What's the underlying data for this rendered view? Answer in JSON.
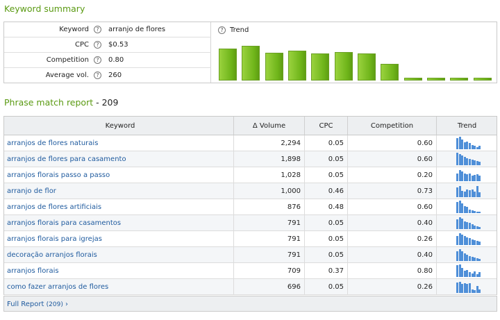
{
  "keyword_summary": {
    "title": "Keyword summary",
    "rows": [
      {
        "label": "Keyword",
        "value": "arranjo de flores"
      },
      {
        "label": "CPC",
        "value": "$0.53"
      },
      {
        "label": "Competition",
        "value": "0.80"
      },
      {
        "label": "Average vol.",
        "value": "260"
      }
    ],
    "trend_label": "Trend",
    "trend_values": [
      0.82,
      0.89,
      0.72,
      0.76,
      0.7,
      0.74,
      0.7,
      0.42,
      0.07,
      0.07,
      0.07,
      0.07
    ],
    "trend_color": "#7bbf22"
  },
  "phrase_match": {
    "title": "Phrase match report",
    "count_sep": " - ",
    "count": "209",
    "columns": [
      "Keyword",
      "Δ Volume",
      "CPC",
      "Competition",
      "Trend"
    ],
    "rows": [
      {
        "keyword": "arranjos de flores naturais",
        "volume": "2,294",
        "cpc": "0.05",
        "competition": "0.60",
        "trend": [
          0.9,
          1.0,
          0.75,
          0.55,
          0.6,
          0.5,
          0.35,
          0.3,
          0.15,
          0.3
        ]
      },
      {
        "keyword": "arranjos de flores para casamento",
        "volume": "1,898",
        "cpc": "0.05",
        "competition": "0.60",
        "trend": [
          1.0,
          0.9,
          0.8,
          0.65,
          0.55,
          0.5,
          0.45,
          0.4,
          0.35,
          0.3
        ]
      },
      {
        "keyword": "arranjos florais passo a passo",
        "volume": "1,028",
        "cpc": "0.05",
        "competition": "0.20",
        "trend": [
          0.6,
          0.9,
          0.75,
          0.6,
          0.55,
          0.6,
          0.45,
          0.5,
          0.55,
          0.45
        ]
      },
      {
        "keyword": "arranjo de flor",
        "volume": "1,000",
        "cpc": "0.46",
        "competition": "0.73",
        "trend": [
          0.75,
          0.9,
          0.5,
          0.45,
          0.6,
          0.55,
          0.6,
          0.45,
          0.9,
          0.4
        ]
      },
      {
        "keyword": "arranjos de flores artificiais",
        "volume": "876",
        "cpc": "0.48",
        "competition": "0.60",
        "trend": [
          0.9,
          1.0,
          0.8,
          0.55,
          0.5,
          0.3,
          0.2,
          0.15,
          0.1,
          0.1
        ]
      },
      {
        "keyword": "arranjos florais para casamentos",
        "volume": "791",
        "cpc": "0.05",
        "competition": "0.40",
        "trend": [
          0.8,
          0.95,
          0.85,
          0.6,
          0.55,
          0.5,
          0.4,
          0.3,
          0.2,
          0.15
        ]
      },
      {
        "keyword": "arranjos florais para igrejas",
        "volume": "791",
        "cpc": "0.05",
        "competition": "0.26",
        "trend": [
          0.7,
          0.95,
          0.85,
          0.7,
          0.6,
          0.55,
          0.45,
          0.4,
          0.35,
          0.3
        ]
      },
      {
        "keyword": "decoração arranjos florais",
        "volume": "791",
        "cpc": "0.05",
        "competition": "0.40",
        "trend": [
          0.8,
          0.95,
          0.8,
          0.6,
          0.5,
          0.4,
          0.35,
          0.25,
          0.2,
          0.15
        ]
      },
      {
        "keyword": "arranjos florais",
        "volume": "709",
        "cpc": "0.37",
        "competition": "0.80",
        "trend": [
          0.95,
          1.0,
          0.7,
          0.5,
          0.55,
          0.4,
          0.3,
          0.45,
          0.2,
          0.4
        ]
      },
      {
        "keyword": "como fazer arranjos de flores",
        "volume": "696",
        "cpc": "0.05",
        "competition": "0.26",
        "trend": [
          0.85,
          0.9,
          0.7,
          0.75,
          0.7,
          0.8,
          0.3,
          0.2,
          0.55,
          0.25
        ]
      }
    ],
    "spark_color": "#4f8fd8"
  },
  "footer": {
    "full_report_label": "Full Report",
    "full_report_count": "(209)",
    "arrow": "›"
  },
  "help_icon": "?"
}
